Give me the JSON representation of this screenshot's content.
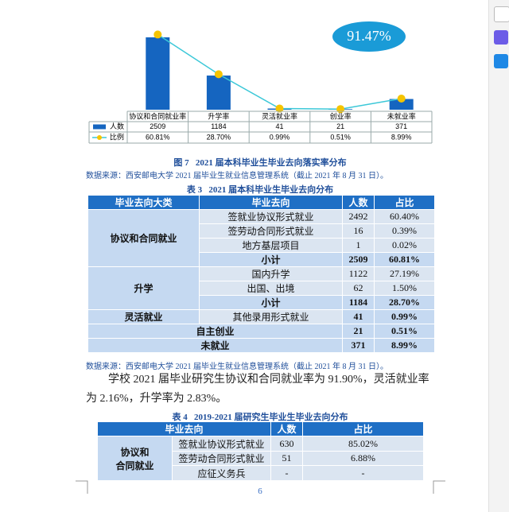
{
  "chart_data": {
    "type": "bar",
    "categories": [
      "协议和合同就业率",
      "升学率",
      "灵活就业率",
      "创业率",
      "未就业率"
    ],
    "series": [
      {
        "name": "人数",
        "color": "#1565c0",
        "values": [
          2509,
          1184,
          41,
          21,
          371
        ]
      },
      {
        "name": "比例",
        "type": "line",
        "axis": "y2",
        "color": "#3cc8d8",
        "marker_color": "#f5c400",
        "values": [
          60.81,
          28.7,
          0.99,
          0.51,
          8.99
        ],
        "value_labels": [
          "60.81%",
          "28.70%",
          "0.99%",
          "0.51%",
          "8.99%"
        ]
      }
    ],
    "ylim": [
      0,
      2700
    ],
    "y2lim": [
      0,
      63
    ],
    "annotation": "91.47%"
  },
  "figure_caption": "图 7   2021 届本科毕业生毕业去向落实率分布",
  "source_note": "数据来源：西安邮电大学 2021 届毕业生就业信息管理系统（截止 2021 年 8 月 31 日）。",
  "table3": {
    "title": "表 3   2021 届本科毕业生毕业去向分布",
    "header": [
      "毕业去向大类",
      "毕业去向",
      "人数",
      "占比"
    ],
    "rows": [
      [
        "协议和合同就业",
        "签就业协议形式就业",
        2492,
        "60.40%"
      ],
      [
        "签劳动合同形式就业",
        16,
        "0.39%"
      ],
      [
        "地方基层项目",
        1,
        "0.02%"
      ],
      [
        "小计",
        2509,
        "60.81%"
      ],
      [
        "升学",
        "国内升学",
        1122,
        "27.19%"
      ],
      [
        "出国、出境",
        62,
        "1.50%"
      ],
      [
        "小计",
        1184,
        "28.70%"
      ],
      [
        "灵活就业",
        "其他录用形式就业",
        41,
        "0.99%"
      ],
      [
        "自主创业",
        21,
        "0.51%"
      ],
      [
        "未就业",
        371,
        "8.99%"
      ]
    ]
  },
  "paragraph": "学校 2021 届毕业研究生协议和合同就业率为 91.90%，灵活就业率为 2.16%，升学率为 2.83%。",
  "table4": {
    "title": "表 4   2019-2021 届研究生毕业生毕业去向分布",
    "header": [
      "毕业去向",
      "人数",
      "占比"
    ],
    "rows": [
      [
        "协议和\n合同就业",
        "签就业协议形式就业",
        630,
        "85.02%"
      ],
      [
        "签劳动合同形式就业",
        51,
        "6.88%"
      ],
      [
        "应征义务兵",
        "-",
        "-"
      ]
    ]
  },
  "page_number": "6"
}
